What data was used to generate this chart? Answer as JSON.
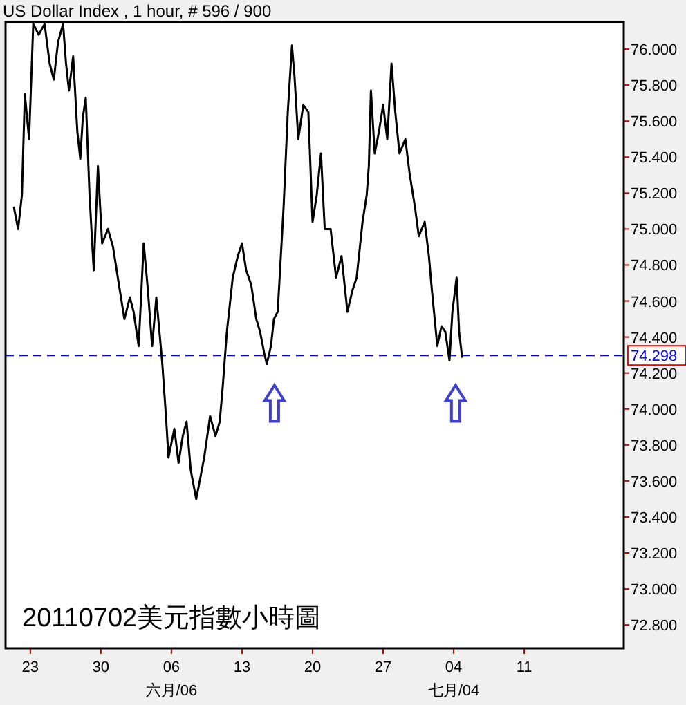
{
  "chart_data": {
    "type": "line",
    "title": "US Dollar Index , 1 hour, # 596 / 900",
    "color": "#000000",
    "x": [
      "2011-05-21T09:00",
      "2011-05-21T19:00",
      "2011-05-22T04:00",
      "2011-05-22T11:00",
      "2011-05-22T21:00",
      "2011-05-23T07:00",
      "2011-05-23T20:00",
      "2011-05-24T10:00",
      "2011-05-24T22:00",
      "2011-05-25T08:00",
      "2011-05-25T18:00",
      "2011-05-26T06:00",
      "2011-05-26T13:00",
      "2011-05-26T20:00",
      "2011-05-27T06:00",
      "2011-05-27T16:00",
      "2011-05-27T23:00",
      "2011-05-28T05:00",
      "2011-05-28T12:00",
      "2011-05-28T21:00",
      "2011-05-29T07:00",
      "2011-05-29T17:00",
      "2011-05-30T03:00",
      "2011-05-30T17:00",
      "2011-05-31T05:00",
      "2011-05-31T19:00",
      "2011-06-01T08:00",
      "2011-06-01T21:00",
      "2011-06-02T06:00",
      "2011-06-02T18:00",
      "2011-06-03T06:00",
      "2011-06-03T16:00",
      "2011-06-04T02:00",
      "2011-06-04T12:00",
      "2011-06-05T02:00",
      "2011-06-05T11:00",
      "2011-06-05T17:00",
      "2011-06-06T07:00",
      "2011-06-06T17:00",
      "2011-06-07T03:00",
      "2011-06-07T12:00",
      "2011-06-07T22:00",
      "2011-06-08T11:00",
      "2011-06-08T21:00",
      "2011-06-09T06:00",
      "2011-06-09T20:00",
      "2011-06-10T09:00",
      "2011-06-10T19:00",
      "2011-06-11T02:00",
      "2011-06-11T12:00",
      "2011-06-12T02:00",
      "2011-06-12T14:00",
      "2011-06-13T00:00",
      "2011-06-13T10:00",
      "2011-06-13T22:00",
      "2011-06-14T10:00",
      "2011-06-14T19:00",
      "2011-06-15T05:00",
      "2011-06-15T11:00",
      "2011-06-15T21:00",
      "2011-06-16T04:00",
      "2011-06-16T13:00",
      "2011-06-17T03:00",
      "2011-06-17T13:00",
      "2011-06-17T23:00",
      "2011-06-18T05:00",
      "2011-06-18T14:00",
      "2011-06-19T02:00",
      "2011-06-19T14:00",
      "2011-06-20T00:00",
      "2011-06-20T10:00",
      "2011-06-20T20:00",
      "2011-06-21T05:00",
      "2011-06-21T19:00",
      "2011-06-22T08:00",
      "2011-06-22T21:00",
      "2011-06-23T11:00",
      "2011-06-23T23:00",
      "2011-06-24T09:00",
      "2011-06-24T23:00",
      "2011-06-25T09:00",
      "2011-06-25T14:00",
      "2011-06-25T19:00",
      "2011-06-26T04:00",
      "2011-06-26T14:00",
      "2011-06-27T00:00",
      "2011-06-27T10:00",
      "2011-06-27T20:00",
      "2011-06-28T05:00",
      "2011-06-28T15:00",
      "2011-06-29T05:00",
      "2011-06-29T15:00",
      "2011-06-30T04:00",
      "2011-06-30T13:00",
      "2011-07-01T03:00",
      "2011-07-01T13:00",
      "2011-07-01T19:00",
      "2011-07-02T09:00",
      "2011-07-02T19:00",
      "2011-07-03T04:00",
      "2011-07-03T14:00",
      "2011-07-03T21:00",
      "2011-07-04T07:00",
      "2011-07-04T13:00",
      "2011-07-04T20:00"
    ],
    "values": [
      75.12,
      75.0,
      75.19,
      75.75,
      75.5,
      76.14,
      76.08,
      76.14,
      75.92,
      75.83,
      76.04,
      76.14,
      75.92,
      75.77,
      75.96,
      75.54,
      75.39,
      75.62,
      75.73,
      75.19,
      74.77,
      75.35,
      74.92,
      75.0,
      74.9,
      74.69,
      74.5,
      74.62,
      74.54,
      74.35,
      74.92,
      74.66,
      74.35,
      74.62,
      74.26,
      73.96,
      73.73,
      73.89,
      73.7,
      73.85,
      73.93,
      73.66,
      73.5,
      73.62,
      73.73,
      73.96,
      73.85,
      73.93,
      74.12,
      74.43,
      74.73,
      74.85,
      74.92,
      74.77,
      74.69,
      74.5,
      74.43,
      74.31,
      74.25,
      74.35,
      74.5,
      74.54,
      75.12,
      75.65,
      76.02,
      75.85,
      75.5,
      75.69,
      75.65,
      75.04,
      75.19,
      75.42,
      75.0,
      75.0,
      74.73,
      74.85,
      74.54,
      74.66,
      74.73,
      75.04,
      75.19,
      75.35,
      75.77,
      75.42,
      75.54,
      75.69,
      75.5,
      75.92,
      75.65,
      75.42,
      75.5,
      75.31,
      75.12,
      74.96,
      75.04,
      74.85,
      74.69,
      74.35,
      74.46,
      74.43,
      74.27,
      74.54,
      74.73,
      74.43,
      74.29
    ],
    "xlim": [
      "2011-05-20T13:00",
      "2011-07-20T21:00"
    ],
    "ylim": [
      72.67,
      76.15
    ],
    "xticks": [
      {
        "value": "2011-05-23",
        "label": "23"
      },
      {
        "value": "2011-05-30",
        "label": "30"
      },
      {
        "value": "2011-06-06",
        "label": "06\n六月/06"
      },
      {
        "value": "2011-06-13",
        "label": "13"
      },
      {
        "value": "2011-06-20",
        "label": "20"
      },
      {
        "value": "2011-06-27",
        "label": "27"
      },
      {
        "value": "2011-07-04",
        "label": "04\n七月/04"
      },
      {
        "value": "2011-07-11",
        "label": "11"
      }
    ],
    "yticks": [
      {
        "value": 72.8,
        "label": "72.800"
      },
      {
        "value": 73.0,
        "label": "73.000"
      },
      {
        "value": 73.2,
        "label": "73.200"
      },
      {
        "value": 73.4,
        "label": "73.400"
      },
      {
        "value": 73.6,
        "label": "73.600"
      },
      {
        "value": 73.8,
        "label": "73.800"
      },
      {
        "value": 74.0,
        "label": "74.000"
      },
      {
        "value": 74.2,
        "label": "74.200"
      },
      {
        "value": 74.4,
        "label": "74.400"
      },
      {
        "value": 74.6,
        "label": "74.600"
      },
      {
        "value": 74.8,
        "label": "74.800"
      },
      {
        "value": 75.0,
        "label": "75.000"
      },
      {
        "value": 75.2,
        "label": "75.200"
      },
      {
        "value": 75.4,
        "label": "75.400"
      },
      {
        "value": 75.6,
        "label": "75.600"
      },
      {
        "value": 75.8,
        "label": "75.800"
      },
      {
        "value": 76.0,
        "label": "76.000"
      }
    ],
    "ref_lines": [
      {
        "axis": "y",
        "value": 74.298,
        "label": "74.298",
        "color": "#0000ff",
        "line_style": "dashed"
      }
    ],
    "annotations": [
      "20110702美元指數小時圖"
    ]
  }
}
